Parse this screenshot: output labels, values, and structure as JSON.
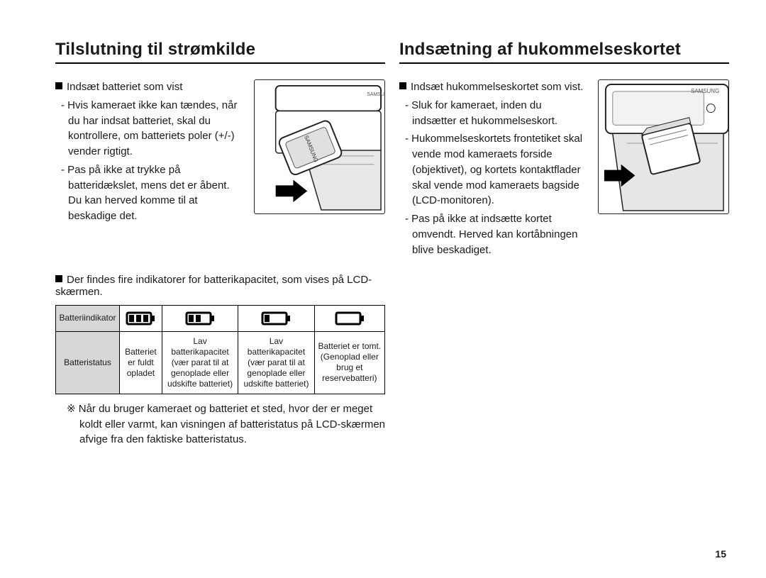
{
  "page_number": "15",
  "left": {
    "heading": "Tilslutning til strømkilde",
    "bullet_lead": "Indsæt batteriet som vist",
    "sub1": "Hvis kameraet ikke kan tændes, når du har indsat batteriet, skal du kontrollere, om batteriets poler (+/-) vender rigtigt.",
    "sub2": "Pas på ikke at trykke på batteridækslet, mens det er åbent. Du kan herved komme til at beskadige det.",
    "indicator_line": "Der findes fire indikatorer for batterikapacitet, som vises på LCD-skærmen.",
    "table": {
      "row1_label": "Batteriindikator",
      "row2_label": "Batteristatus",
      "status": [
        "Batteriet er fuldt opladet",
        "Lav batterikapacitet (vær parat til at genoplade eller udskifte batteriet)",
        "Lav batterikapacitet (vær parat til at genoplade eller udskifte batteriet)",
        "Batteriet er tomt. (Genoplad eller brug et reservebatteri)"
      ],
      "icon_levels": [
        3,
        2,
        1,
        0
      ]
    },
    "footnote": "Når du bruger kameraet og batteriet et sted, hvor der er meget koldt eller varmt, kan visningen af batteristatus på LCD-skærmen afvige fra den faktiske batteristatus."
  },
  "right": {
    "heading": "Indsætning af hukommelseskortet",
    "bullet_lead": "Indsæt hukommelseskortet som vist.",
    "sub1": "Sluk for kameraet, inden du indsætter et hukommelseskort.",
    "sub2": "Hukommelseskortets frontetiket skal vende mod kameraets forside (objektivet), og kortets kontaktflader skal vende mod kameraets bagside (LCD-monitoren).",
    "sub3": "Pas på ikke at indsætte kortet omvendt. Herved kan kortåbningen blive beskadiget."
  },
  "colors": {
    "text": "#1a1a1a",
    "table_header_bg": "#d7d7d7",
    "border": "#000000"
  }
}
